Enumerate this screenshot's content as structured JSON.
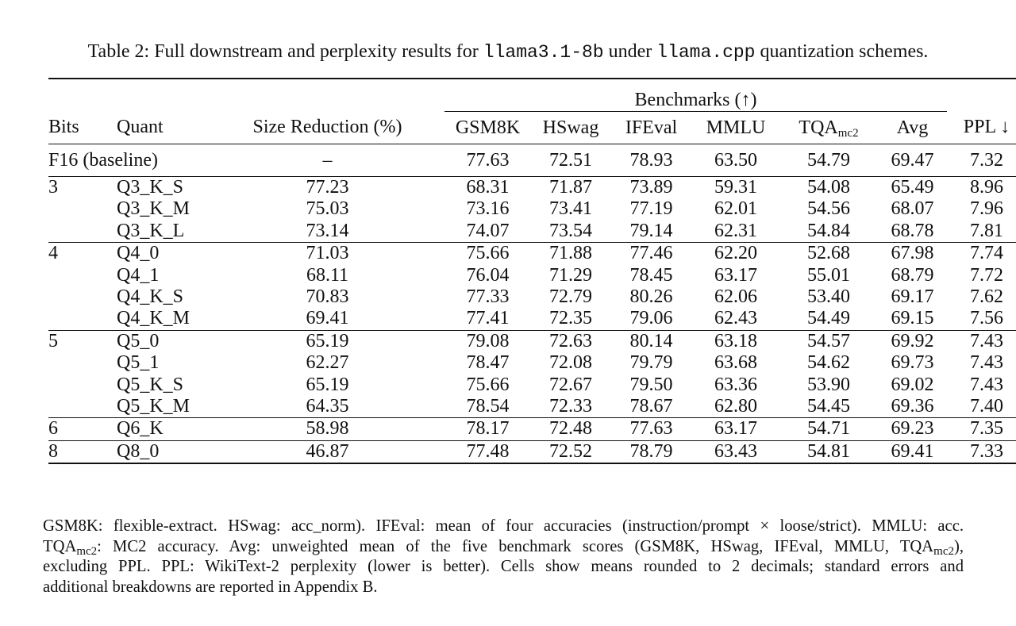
{
  "caption": {
    "prefix": "Table 2: Full downstream and perplexity results for ",
    "model": "llama3.1-8b",
    "middle": " under ",
    "tool": "llama.cpp",
    "suffix": " quantization schemes."
  },
  "header": {
    "group_label": "Benchmarks (↑)",
    "bits": "Bits",
    "quant": "Quant",
    "size": "Size Reduction (%)",
    "gsm8k": "GSM8K",
    "hswag": "HSwag",
    "ifeval": "IFEval",
    "mmlu": "MMLU",
    "tqa": "TQA",
    "tqa_sub": "mc2",
    "avg": "Avg",
    "ppl": "PPL ↓"
  },
  "baseline": {
    "label": "F16 (baseline)",
    "size": "–",
    "gsm8k": "77.63",
    "hswag": "72.51",
    "ifeval": "78.93",
    "mmlu": "63.50",
    "tqa": "54.79",
    "avg": "69.47",
    "ppl": "7.32"
  },
  "groups": [
    {
      "bits": "3",
      "rows": [
        {
          "quant": "Q3_K_S",
          "size": "77.23",
          "gsm8k": "68.31",
          "hswag": "71.87",
          "ifeval": "73.89",
          "mmlu": "59.31",
          "tqa": "54.08",
          "avg": "65.49",
          "ppl": "8.96"
        },
        {
          "quant": "Q3_K_M",
          "size": "75.03",
          "gsm8k": "73.16",
          "hswag": "73.41",
          "ifeval": "77.19",
          "mmlu": "62.01",
          "tqa": "54.56",
          "avg": "68.07",
          "ppl": "7.96"
        },
        {
          "quant": "Q3_K_L",
          "size": "73.14",
          "gsm8k": "74.07",
          "hswag": "73.54",
          "ifeval": "79.14",
          "mmlu": "62.31",
          "tqa": "54.84",
          "avg": "68.78",
          "ppl": "7.81"
        }
      ]
    },
    {
      "bits": "4",
      "rows": [
        {
          "quant": "Q4_0",
          "size": "71.03",
          "gsm8k": "75.66",
          "hswag": "71.88",
          "ifeval": "77.46",
          "mmlu": "62.20",
          "tqa": "52.68",
          "avg": "67.98",
          "ppl": "7.74"
        },
        {
          "quant": "Q4_1",
          "size": "68.11",
          "gsm8k": "76.04",
          "hswag": "71.29",
          "ifeval": "78.45",
          "mmlu": "63.17",
          "tqa": "55.01",
          "avg": "68.79",
          "ppl": "7.72"
        },
        {
          "quant": "Q4_K_S",
          "size": "70.83",
          "gsm8k": "77.33",
          "hswag": "72.79",
          "ifeval": "80.26",
          "mmlu": "62.06",
          "tqa": "53.40",
          "avg": "69.17",
          "ppl": "7.62"
        },
        {
          "quant": "Q4_K_M",
          "size": "69.41",
          "gsm8k": "77.41",
          "hswag": "72.35",
          "ifeval": "79.06",
          "mmlu": "62.43",
          "tqa": "54.49",
          "avg": "69.15",
          "ppl": "7.56"
        }
      ]
    },
    {
      "bits": "5",
      "rows": [
        {
          "quant": "Q5_0",
          "size": "65.19",
          "gsm8k": "79.08",
          "hswag": "72.63",
          "ifeval": "80.14",
          "mmlu": "63.18",
          "tqa": "54.57",
          "avg": "69.92",
          "ppl": "7.43"
        },
        {
          "quant": "Q5_1",
          "size": "62.27",
          "gsm8k": "78.47",
          "hswag": "72.08",
          "ifeval": "79.79",
          "mmlu": "63.68",
          "tqa": "54.62",
          "avg": "69.73",
          "ppl": "7.43"
        },
        {
          "quant": "Q5_K_S",
          "size": "65.19",
          "gsm8k": "75.66",
          "hswag": "72.67",
          "ifeval": "79.50",
          "mmlu": "63.36",
          "tqa": "53.90",
          "avg": "69.02",
          "ppl": "7.43"
        },
        {
          "quant": "Q5_K_M",
          "size": "64.35",
          "gsm8k": "78.54",
          "hswag": "72.33",
          "ifeval": "78.67",
          "mmlu": "62.80",
          "tqa": "54.45",
          "avg": "69.36",
          "ppl": "7.40"
        }
      ]
    },
    {
      "bits": "6",
      "rows": [
        {
          "quant": "Q6_K",
          "size": "58.98",
          "gsm8k": "78.17",
          "hswag": "72.48",
          "ifeval": "77.63",
          "mmlu": "63.17",
          "tqa": "54.71",
          "avg": "69.23",
          "ppl": "7.35"
        }
      ]
    },
    {
      "bits": "8",
      "rows": [
        {
          "quant": "Q8_0",
          "size": "46.87",
          "gsm8k": "77.48",
          "hswag": "72.52",
          "ifeval": "78.79",
          "mmlu": "63.43",
          "tqa": "54.81",
          "avg": "69.41",
          "ppl": "7.33"
        }
      ]
    }
  ],
  "footnote": {
    "l1": "GSM8K: flexible-extract. HSwag: acc_norm). IFEval: mean of four accuracies (instruction/prompt × loose/strict). MMLU: acc.",
    "l2a": "TQA",
    "l2a_sub": "mc2",
    "l2b": ": MC2 accuracy.  Avg: unweighted mean of the five benchmark scores (GSM8K, HSwag, IFEval, MMLU, TQA",
    "l2b_sub": "mc2",
    "l2c": "),",
    "l3": "excluding PPL. PPL: WikiText-2 perplexity (lower is better).  Cells show means rounded to 2 decimals; standard errors and",
    "l4": "additional breakdowns are reported in Appendix B."
  }
}
